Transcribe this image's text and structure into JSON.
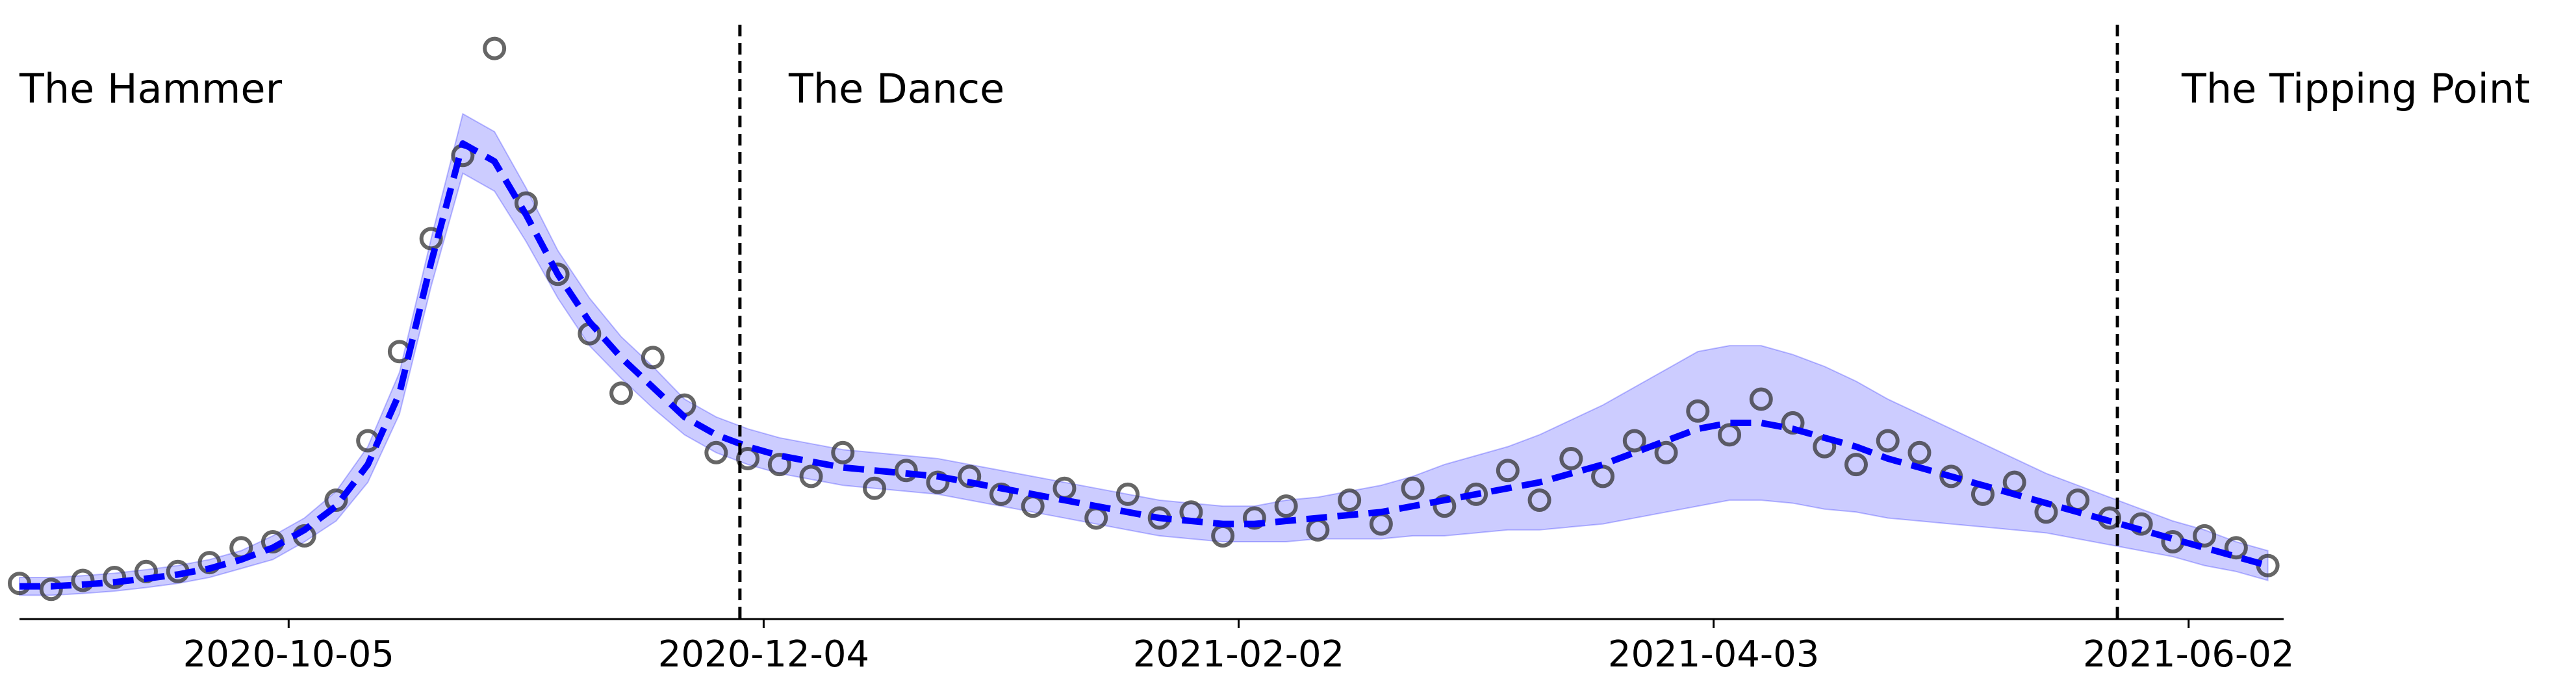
{
  "chart_data": {
    "type": "line",
    "annotations": [
      "The Hammer",
      "The Dance",
      "The Tipping Point"
    ],
    "x": [
      "2020-09-01",
      "2020-09-05",
      "2020-09-09",
      "2020-09-13",
      "2020-09-17",
      "2020-09-21",
      "2020-09-25",
      "2020-09-29",
      "2020-10-03",
      "2020-10-07",
      "2020-10-11",
      "2020-10-15",
      "2020-10-19",
      "2020-10-23",
      "2020-10-27",
      "2020-10-31",
      "2020-11-04",
      "2020-11-08",
      "2020-11-12",
      "2020-11-16",
      "2020-11-20",
      "2020-11-24",
      "2020-11-28",
      "2020-12-02",
      "2020-12-06",
      "2020-12-10",
      "2020-12-14",
      "2020-12-18",
      "2020-12-22",
      "2020-12-26",
      "2020-12-30",
      "2021-01-03",
      "2021-01-07",
      "2021-01-11",
      "2021-01-15",
      "2021-01-19",
      "2021-01-23",
      "2021-01-27",
      "2021-01-31",
      "2021-02-04",
      "2021-02-08",
      "2021-02-12",
      "2021-02-16",
      "2021-02-20",
      "2021-02-24",
      "2021-02-28",
      "2021-03-04",
      "2021-03-08",
      "2021-03-12",
      "2021-03-16",
      "2021-03-20",
      "2021-03-24",
      "2021-03-28",
      "2021-04-01",
      "2021-04-05",
      "2021-04-09",
      "2021-04-13",
      "2021-04-17",
      "2021-04-21",
      "2021-04-25",
      "2021-04-29",
      "2021-05-03",
      "2021-05-07",
      "2021-05-11",
      "2021-05-15",
      "2021-05-19",
      "2021-05-23",
      "2021-05-27",
      "2021-05-31",
      "2021-06-04",
      "2021-06-08",
      "2021-06-12"
    ],
    "observed": {
      "color": "#333333",
      "values": [
        6,
        5,
        6.5,
        7,
        8,
        8,
        9.5,
        12,
        13,
        14,
        20,
        30,
        45,
        64,
        78,
        96,
        70,
        58,
        48,
        38,
        44,
        36,
        28,
        27,
        26,
        24,
        28,
        22,
        25,
        23,
        24,
        21,
        19,
        22,
        17,
        21,
        17,
        18,
        14,
        17,
        19,
        15,
        20,
        16,
        22,
        19,
        21,
        25,
        20,
        27,
        24,
        30,
        28,
        35,
        31,
        37,
        33,
        29,
        26,
        30,
        28,
        24,
        21,
        23,
        18,
        20,
        17,
        16,
        13,
        14,
        12,
        9
      ]
    },
    "fit": {
      "color": "#0000ff",
      "values": [
        5.5,
        5.5,
        5.8,
        6.2,
        6.8,
        7.5,
        8.5,
        10,
        12,
        15,
        19,
        26,
        38,
        60,
        80,
        77,
        68,
        58,
        50,
        44,
        39,
        34,
        31,
        29,
        27.5,
        26.5,
        25.5,
        25,
        24.5,
        24,
        23,
        22,
        21,
        20,
        19,
        18,
        17,
        16.5,
        16,
        16,
        16.5,
        17,
        17.5,
        18,
        19,
        20,
        21,
        22,
        23,
        24.5,
        26,
        28,
        30,
        32,
        33,
        33,
        32,
        30.5,
        29,
        27,
        25.5,
        24,
        22.5,
        21,
        19.5,
        18,
        16.5,
        15,
        13.5,
        12,
        10.5,
        9
      ]
    },
    "band": {
      "color": "#0000ff",
      "lower": [
        4,
        4,
        4.3,
        4.7,
        5.3,
        6,
        7,
        8.5,
        10,
        13,
        16.5,
        23,
        34.5,
        56,
        75,
        72,
        63.5,
        54,
        46,
        40.5,
        35.5,
        31,
        28,
        26,
        24.5,
        23.5,
        22.5,
        22,
        21.5,
        21,
        20,
        19,
        18,
        17,
        16,
        15,
        14,
        13.5,
        13,
        13,
        13,
        13.5,
        13.5,
        13.5,
        14,
        14,
        14.5,
        15,
        15,
        15.5,
        16,
        17,
        18,
        19,
        20,
        20,
        19.5,
        18.5,
        18,
        17,
        16.5,
        16,
        15.5,
        15,
        14.5,
        13.5,
        12.5,
        11.5,
        10.5,
        9,
        8,
        6.5
      ],
      "upper": [
        7,
        7,
        7.3,
        7.7,
        8.3,
        9,
        10,
        11.5,
        14,
        17,
        21.5,
        29,
        41.5,
        64,
        85,
        82,
        72.5,
        62,
        54,
        47.5,
        42.5,
        37,
        34,
        32,
        30.5,
        29.5,
        28.5,
        28,
        27.5,
        27,
        26,
        25,
        24,
        23,
        22,
        21,
        20,
        19.5,
        19,
        19,
        20,
        20.5,
        21.5,
        22.5,
        24,
        26,
        27.5,
        29,
        31,
        33.5,
        36,
        39,
        42,
        45,
        46,
        46,
        44.5,
        42.5,
        40,
        37,
        34.5,
        32,
        29.5,
        27,
        24.5,
        22.5,
        20.5,
        18.5,
        16.5,
        15,
        13,
        11.5
      ]
    },
    "vlines": [
      "2020-12-01",
      "2021-05-24"
    ],
    "xlim": [
      "2020-09-01",
      "2021-06-14"
    ],
    "xticks": [
      "2020-10-05",
      "2020-12-04",
      "2021-02-02",
      "2021-04-03",
      "2021-06-02"
    ],
    "ylim": [
      0,
      100
    ]
  }
}
